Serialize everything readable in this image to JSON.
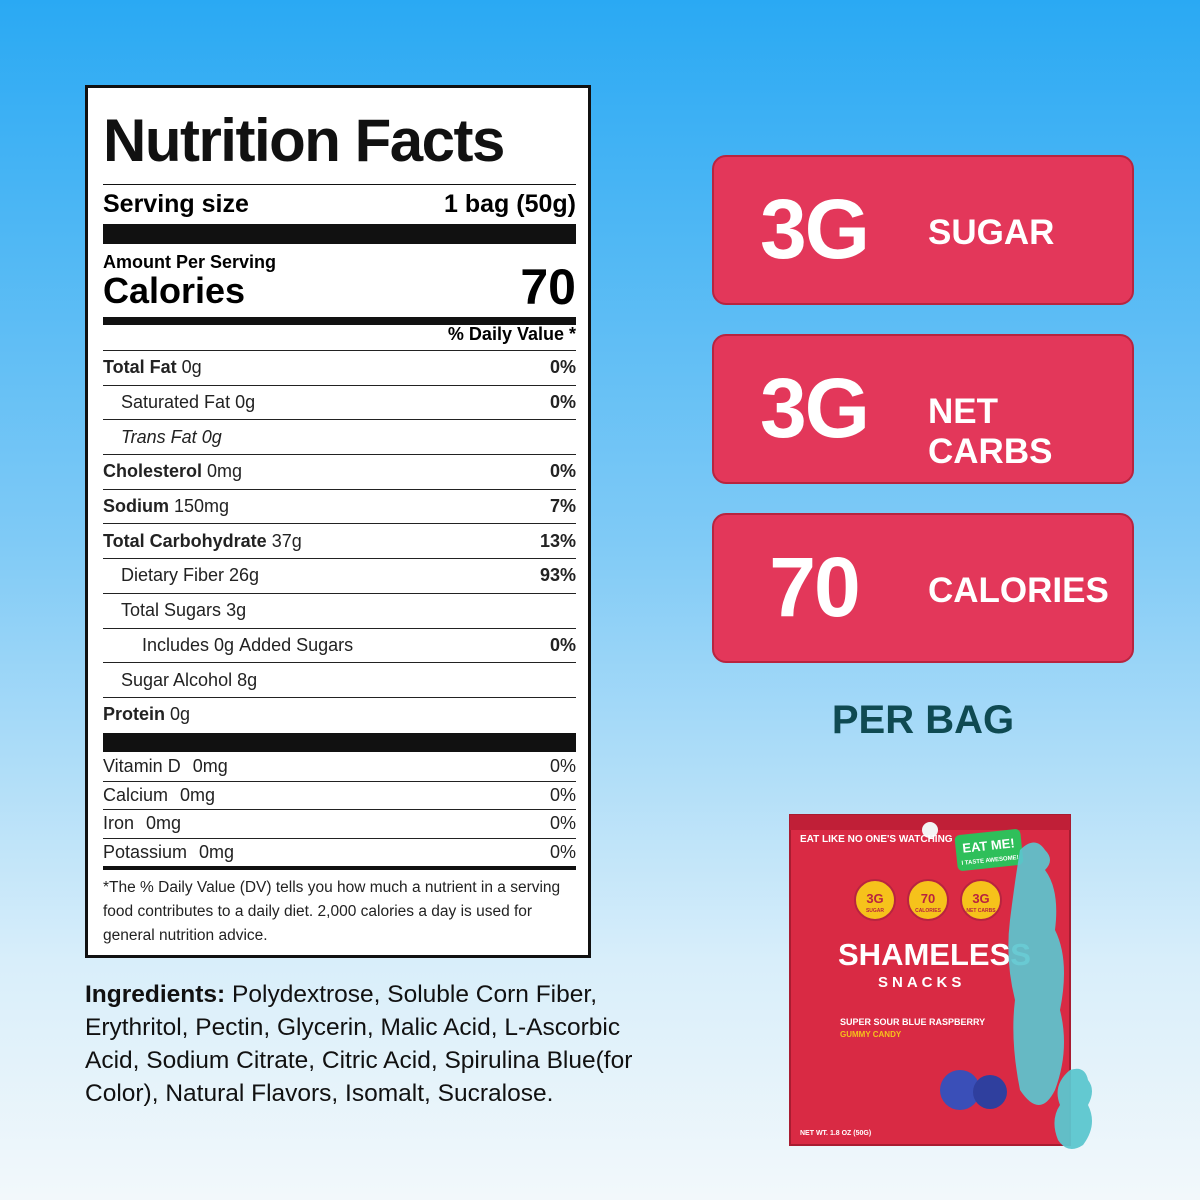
{
  "nutrition": {
    "title": "Nutrition Facts",
    "serving_label": "Serving size",
    "serving_value": "1 bag (50g)",
    "amount_per_serving": "Amount Per Serving",
    "calories_label": "Calories",
    "calories_value": "70",
    "daily_value_header": "% Daily Value *",
    "rows": [
      {
        "label": "Total Fat",
        "amount": "0g",
        "dv": "0%"
      },
      {
        "label": "Saturated Fat",
        "amount": "0g",
        "dv": "0%"
      },
      {
        "label": "Trans Fat",
        "amount": "0g"
      },
      {
        "label": "Cholesterol",
        "amount": "0mg",
        "dv": "0%"
      },
      {
        "label": "Sodium",
        "amount": "150mg",
        "dv": "7%"
      },
      {
        "label": "Total Carbohydrate",
        "amount": "37g",
        "dv": "13%"
      },
      {
        "label": "Dietary Fiber",
        "amount": "26g",
        "dv": "93%"
      },
      {
        "label": "Total Sugars",
        "amount": "3g"
      },
      {
        "label": "Includes",
        "amount": "0g",
        "suffix": "Added Sugars",
        "dv": "0%"
      },
      {
        "label": "Sugar Alcohol",
        "amount": "8g"
      },
      {
        "label": "Protein",
        "amount": "0g"
      }
    ],
    "vitamins": [
      {
        "label": "Vitamin D",
        "amount": "0mg",
        "dv": "0%"
      },
      {
        "label": "Calcium",
        "amount": "0mg",
        "dv": "0%"
      },
      {
        "label": "Iron",
        "amount": "0mg",
        "dv": "0%"
      },
      {
        "label": "Potassium",
        "amount": "0mg",
        "dv": "0%"
      }
    ],
    "footnote": "*The % Daily Value (DV) tells you how much a nutrient in a serving food contributes to a daily diet. 2,000 calories a day is used for general nutrition advice."
  },
  "ingredients": {
    "label": "Ingredients:",
    "text": "Polydextrose, Soluble Corn Fiber, Erythritol, Pectin, Glycerin, Malic Acid, L-Ascorbic Acid, Sodium Citrate, Citric Acid, Spirulina Blue(for Color), Natural Flavors, Isomalt, Sucralose."
  },
  "badges": [
    {
      "value": "3G",
      "label": "SUGAR"
    },
    {
      "value": "3G",
      "label": "NET CARBS"
    },
    {
      "value": "70",
      "label": "CALORIES"
    }
  ],
  "per_bag": "PER BAG",
  "bag": {
    "tagline": "EAT LIKE NO ONE'S WATCHING",
    "sticker": "EAT ME!",
    "sticker_sub": "I TASTE AWESOME!",
    "stats": [
      {
        "value": "3G",
        "label": "SUGAR"
      },
      {
        "value": "70",
        "label": "CALORIES"
      },
      {
        "value": "3G",
        "label": "NET CARBS"
      }
    ],
    "brand": "SHAMELESS",
    "brand_sub": "SNACKS",
    "flavor": "SUPER SOUR BLUE RASPBERRY",
    "candy_type": "GUMMY CANDY",
    "net_weight": "NET WT. 1.8 OZ (50G)"
  }
}
